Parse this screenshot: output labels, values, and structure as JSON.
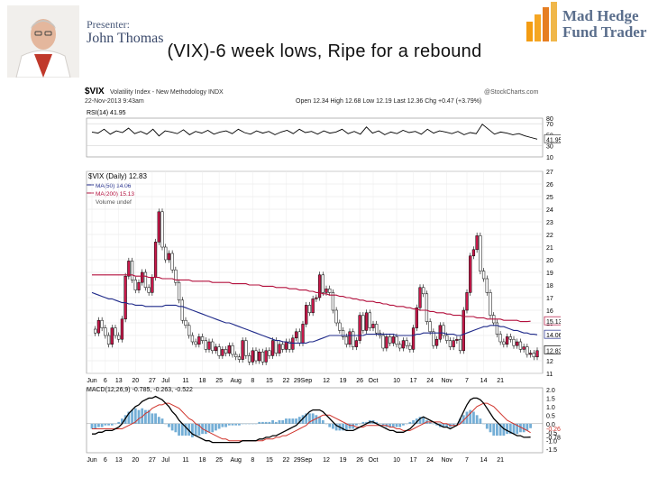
{
  "slide": {
    "title": "(VIX)-6 week lows, Ripe for a rebound",
    "presenter_label": "Presenter:",
    "presenter_name": "John Thomas",
    "logo_line1": "Mad Hedge",
    "logo_line2": "Fund Trader"
  },
  "chart_data": {
    "type": "line",
    "header": {
      "symbol": "$VIX",
      "name": "Volatility Index - New Methodology INDX",
      "date": "22-Nov-2013 9:43am",
      "source": "@StockCharts.com",
      "quote": "Open 12.34 High 12.68 Low 12.19 Last 12.36 Chg +0.47 (+3.79%)"
    },
    "rsi": {
      "label": "RSI(14) 41.95",
      "levels": [
        80,
        70,
        50,
        41.95,
        30,
        10
      ],
      "values": [
        55,
        53,
        60,
        51,
        57,
        54,
        62,
        52,
        56,
        51,
        60,
        48,
        57,
        55,
        52,
        59,
        50,
        56,
        53,
        58,
        51,
        55,
        57,
        52,
        60,
        54,
        51,
        57,
        53,
        56,
        50,
        55,
        58,
        52,
        60,
        54,
        56,
        51,
        57,
        53,
        55,
        60,
        52,
        56,
        51,
        64,
        53,
        57,
        50,
        55,
        52,
        58,
        54,
        56,
        51,
        60,
        53,
        57,
        55,
        52,
        56,
        50,
        54,
        52,
        69,
        60,
        51,
        55,
        53,
        50,
        52,
        48,
        45,
        42
      ]
    },
    "price": {
      "legend": [
        "$VIX (Daily) 12.83",
        "MA(50) 14.06",
        "MA(200) 15.13",
        "Volume undef"
      ],
      "y_ticks": [
        27,
        26,
        25,
        24,
        23,
        22,
        21,
        20,
        19,
        18,
        17,
        16,
        15,
        14,
        13,
        12,
        11
      ],
      "y_range": [
        11,
        27
      ],
      "last_label": "12.83",
      "ma50_label": "14.06",
      "ma200_label": "15.13",
      "closes": [
        14.5,
        14.2,
        15.2,
        14.6,
        14.0,
        13.3,
        14.6,
        14.0,
        13.7,
        15.3,
        18.7,
        19.9,
        18.4,
        17.6,
        18.2,
        19.0,
        17.8,
        17.4,
        18.6,
        21.4,
        23.8,
        21.0,
        20.0,
        20.5,
        19.2,
        18.2,
        16.8,
        15.2,
        14.8,
        14.0,
        13.5,
        13.3,
        13.9,
        13.6,
        12.9,
        13.5,
        12.8,
        13.1,
        12.4,
        12.9,
        12.6,
        13.2,
        12.5,
        12.3,
        12.1,
        13.6,
        12.4,
        11.9,
        12.8,
        12.0,
        12.7,
        11.9,
        12.8,
        12.4,
        13.6,
        12.6,
        13.3,
        12.9,
        13.5,
        12.9,
        13.8,
        14.3,
        13.4,
        14.9,
        16.4,
        15.8,
        16.9,
        17.0,
        18.8,
        17.4,
        17.7,
        17.4,
        16.0,
        15.0,
        14.4,
        13.9,
        13.3,
        14.3,
        13.1,
        13.6,
        15.6,
        14.4,
        15.8,
        14.6,
        14.9,
        14.2,
        14.0,
        13.0,
        13.9,
        13.4,
        13.9,
        13.3,
        13.0,
        13.6,
        13.2,
        12.9,
        14.6,
        16.2,
        17.8,
        17.3,
        15.1,
        14.3,
        13.2,
        13.7,
        14.8,
        14.0,
        13.6,
        13.1,
        13.6,
        13.7,
        12.8,
        16.0,
        17.4,
        20.3,
        20.8,
        21.9,
        19.1,
        18.5,
        17.4,
        15.6,
        15.0,
        14.1,
        13.5,
        13.3,
        13.9,
        13.7,
        13.2,
        13.5,
        12.9,
        13.1,
        12.5,
        12.6,
        12.3,
        12.8
      ],
      "ma50": [
        17.4,
        17.3,
        17.2,
        17.1,
        17.0,
        16.9,
        16.9,
        16.8,
        16.7,
        16.6,
        16.6,
        16.5,
        16.5,
        16.4,
        16.4,
        16.4,
        16.3,
        16.3,
        16.3,
        16.3,
        16.3,
        16.3,
        16.4,
        16.4,
        16.4,
        16.4,
        16.3,
        16.3,
        16.2,
        16.1,
        16.0,
        15.9,
        15.8,
        15.7,
        15.6,
        15.5,
        15.4,
        15.3,
        15.2,
        15.1,
        15.0,
        15.0,
        14.9,
        14.8,
        14.7,
        14.6,
        14.5,
        14.4,
        14.3,
        14.2,
        14.1,
        14.0,
        13.9,
        13.8,
        13.7,
        13.6,
        13.6,
        13.5,
        13.5,
        13.4,
        13.4,
        13.4,
        13.4,
        13.4,
        13.4,
        13.5,
        13.5,
        13.6,
        13.7,
        13.8,
        13.9,
        14.0,
        14.0,
        14.0,
        14.0,
        14.0,
        14.0,
        14.0,
        14.0,
        14.0,
        14.0,
        14.0,
        14.1,
        14.1,
        14.1,
        14.1,
        14.1,
        14.1,
        14.1,
        14.1,
        14.1,
        14.0,
        14.0,
        14.0,
        14.0,
        14.0,
        14.0,
        14.1,
        14.1,
        14.2,
        14.2,
        14.2,
        14.2,
        14.2,
        14.2,
        14.2,
        14.1,
        14.1,
        14.1,
        14.0,
        14.0,
        14.1,
        14.2,
        14.3,
        14.4,
        14.5,
        14.6,
        14.7,
        14.7,
        14.8,
        14.8,
        14.8,
        14.7,
        14.7,
        14.6,
        14.5,
        14.4,
        14.4,
        14.3,
        14.2,
        14.2,
        14.1,
        14.1,
        14.06
      ],
      "ma200": [
        18.8,
        18.8,
        18.8,
        18.8,
        18.8,
        18.8,
        18.8,
        18.8,
        18.8,
        18.8,
        18.8,
        18.8,
        18.8,
        18.7,
        18.7,
        18.7,
        18.7,
        18.6,
        18.6,
        18.6,
        18.6,
        18.5,
        18.5,
        18.5,
        18.5,
        18.4,
        18.4,
        18.4,
        18.4,
        18.4,
        18.3,
        18.3,
        18.3,
        18.3,
        18.3,
        18.3,
        18.2,
        18.2,
        18.2,
        18.2,
        18.2,
        18.2,
        18.1,
        18.1,
        18.1,
        18.1,
        18.1,
        18.0,
        18.0,
        18.0,
        18.0,
        17.9,
        17.9,
        17.9,
        17.9,
        17.8,
        17.8,
        17.8,
        17.8,
        17.7,
        17.7,
        17.7,
        17.6,
        17.6,
        17.6,
        17.5,
        17.5,
        17.4,
        17.4,
        17.3,
        17.3,
        17.2,
        17.2,
        17.2,
        17.1,
        17.1,
        17.0,
        17.0,
        16.9,
        16.9,
        16.8,
        16.8,
        16.7,
        16.7,
        16.7,
        16.6,
        16.6,
        16.5,
        16.5,
        16.4,
        16.4,
        16.3,
        16.3,
        16.3,
        16.2,
        16.2,
        16.1,
        16.1,
        16.0,
        16.0,
        16.0,
        15.9,
        15.9,
        15.8,
        15.8,
        15.8,
        15.7,
        15.7,
        15.6,
        15.6,
        15.6,
        15.5,
        15.5,
        15.5,
        15.5,
        15.4,
        15.4,
        15.4,
        15.3,
        15.3,
        15.3,
        15.3,
        15.3,
        15.2,
        15.2,
        15.2,
        15.2,
        15.2,
        15.1,
        15.1,
        15.1,
        15.13
      ]
    },
    "macd": {
      "label": "MACD(12,26,9) -0.785, -0.263, -0.522",
      "y_ticks": [
        2.0,
        1.5,
        1.0,
        0.5,
        0.0,
        -0.5,
        -1.0,
        -1.5
      ],
      "y_range": [
        -1.7,
        2.1
      ],
      "last_labels": [
        "-0.263",
        "-0.785"
      ],
      "macd": [
        -0.6,
        -0.6,
        -0.5,
        -0.5,
        -0.4,
        -0.4,
        -0.4,
        -0.3,
        -0.2,
        0.0,
        0.3,
        0.6,
        0.8,
        1.0,
        1.1,
        1.3,
        1.4,
        1.5,
        1.5,
        1.6,
        1.5,
        1.4,
        1.2,
        1.0,
        0.7,
        0.5,
        0.2,
        0.0,
        -0.2,
        -0.4,
        -0.6,
        -0.7,
        -0.8,
        -0.9,
        -1.0,
        -1.0,
        -1.1,
        -1.1,
        -1.1,
        -1.1,
        -1.1,
        -1.1,
        -1.1,
        -1.1,
        -1.1,
        -1.0,
        -1.0,
        -1.0,
        -1.0,
        -1.0,
        -0.9,
        -0.9,
        -0.8,
        -0.8,
        -0.7,
        -0.7,
        -0.6,
        -0.5,
        -0.4,
        -0.3,
        -0.2,
        -0.1,
        0.1,
        0.3,
        0.5,
        0.7,
        0.8,
        0.8,
        0.8,
        0.7,
        0.5,
        0.3,
        0.1,
        -0.1,
        -0.2,
        -0.3,
        -0.4,
        -0.4,
        -0.4,
        -0.3,
        -0.2,
        -0.1,
        0.0,
        0.1,
        0.1,
        0.0,
        -0.1,
        -0.2,
        -0.3,
        -0.4,
        -0.4,
        -0.5,
        -0.5,
        -0.5,
        -0.4,
        -0.3,
        -0.1,
        0.1,
        0.3,
        0.4,
        0.3,
        0.2,
        0.1,
        0.0,
        -0.1,
        -0.2,
        -0.2,
        -0.3,
        -0.2,
        -0.1,
        0.3,
        0.7,
        1.1,
        1.4,
        1.5,
        1.5,
        1.4,
        1.2,
        0.9,
        0.6,
        0.3,
        0.1,
        -0.1,
        -0.3,
        -0.4,
        -0.5,
        -0.6,
        -0.7,
        -0.7,
        -0.8,
        -0.8,
        -0.785
      ],
      "signal": [
        -0.3,
        -0.3,
        -0.3,
        -0.3,
        -0.3,
        -0.3,
        -0.3,
        -0.3,
        -0.3,
        -0.3,
        -0.2,
        -0.1,
        0.0,
        0.1,
        0.3,
        0.4,
        0.6,
        0.7,
        0.9,
        1.0,
        1.1,
        1.1,
        1.2,
        1.2,
        1.1,
        1.0,
        0.9,
        0.7,
        0.5,
        0.3,
        0.2,
        0.0,
        -0.1,
        -0.3,
        -0.4,
        -0.5,
        -0.6,
        -0.7,
        -0.8,
        -0.9,
        -0.9,
        -1.0,
        -1.0,
        -1.0,
        -1.0,
        -1.0,
        -1.0,
        -1.0,
        -1.0,
        -1.0,
        -1.0,
        -1.0,
        -0.9,
        -0.9,
        -0.9,
        -0.8,
        -0.8,
        -0.7,
        -0.7,
        -0.6,
        -0.5,
        -0.4,
        -0.3,
        -0.2,
        -0.1,
        0.1,
        0.2,
        0.3,
        0.4,
        0.5,
        0.5,
        0.5,
        0.4,
        0.3,
        0.2,
        0.1,
        0.0,
        -0.1,
        -0.1,
        -0.2,
        -0.2,
        -0.2,
        -0.1,
        -0.1,
        -0.1,
        -0.1,
        -0.1,
        -0.1,
        -0.1,
        -0.2,
        -0.2,
        -0.3,
        -0.3,
        -0.4,
        -0.4,
        -0.4,
        -0.3,
        -0.2,
        -0.1,
        0.0,
        0.1,
        0.1,
        0.1,
        0.1,
        0.1,
        0.0,
        0.0,
        -0.1,
        -0.1,
        -0.1,
        0.0,
        0.2,
        0.4,
        0.6,
        0.8,
        1.0,
        1.1,
        1.2,
        1.2,
        1.1,
        1.0,
        0.8,
        0.6,
        0.4,
        0.2,
        0.1,
        0.0,
        -0.1,
        -0.2,
        -0.3,
        -0.4,
        -0.522
      ]
    },
    "x_ticks": [
      {
        "i": 0,
        "label": "Jun"
      },
      {
        "i": 4,
        "label": "6"
      },
      {
        "i": 8,
        "label": "13"
      },
      {
        "i": 13,
        "label": "20"
      },
      {
        "i": 18,
        "label": "27"
      },
      {
        "i": 22,
        "label": "Jul"
      },
      {
        "i": 28,
        "label": "11"
      },
      {
        "i": 33,
        "label": "18"
      },
      {
        "i": 38,
        "label": "25"
      },
      {
        "i": 43,
        "label": "Aug"
      },
      {
        "i": 48,
        "label": "8"
      },
      {
        "i": 53,
        "label": "15"
      },
      {
        "i": 58,
        "label": "22"
      },
      {
        "i": 63,
        "label": "29Sep"
      },
      {
        "i": 70,
        "label": "12"
      },
      {
        "i": 75,
        "label": "19"
      },
      {
        "i": 80,
        "label": "26"
      },
      {
        "i": 84,
        "label": "Oct"
      },
      {
        "i": 91,
        "label": "10"
      },
      {
        "i": 96,
        "label": "17"
      },
      {
        "i": 101,
        "label": "24"
      },
      {
        "i": 106,
        "label": "Nov"
      },
      {
        "i": 112,
        "label": "7"
      },
      {
        "i": 117,
        "label": "14"
      },
      {
        "i": 122,
        "label": "21"
      }
    ]
  }
}
